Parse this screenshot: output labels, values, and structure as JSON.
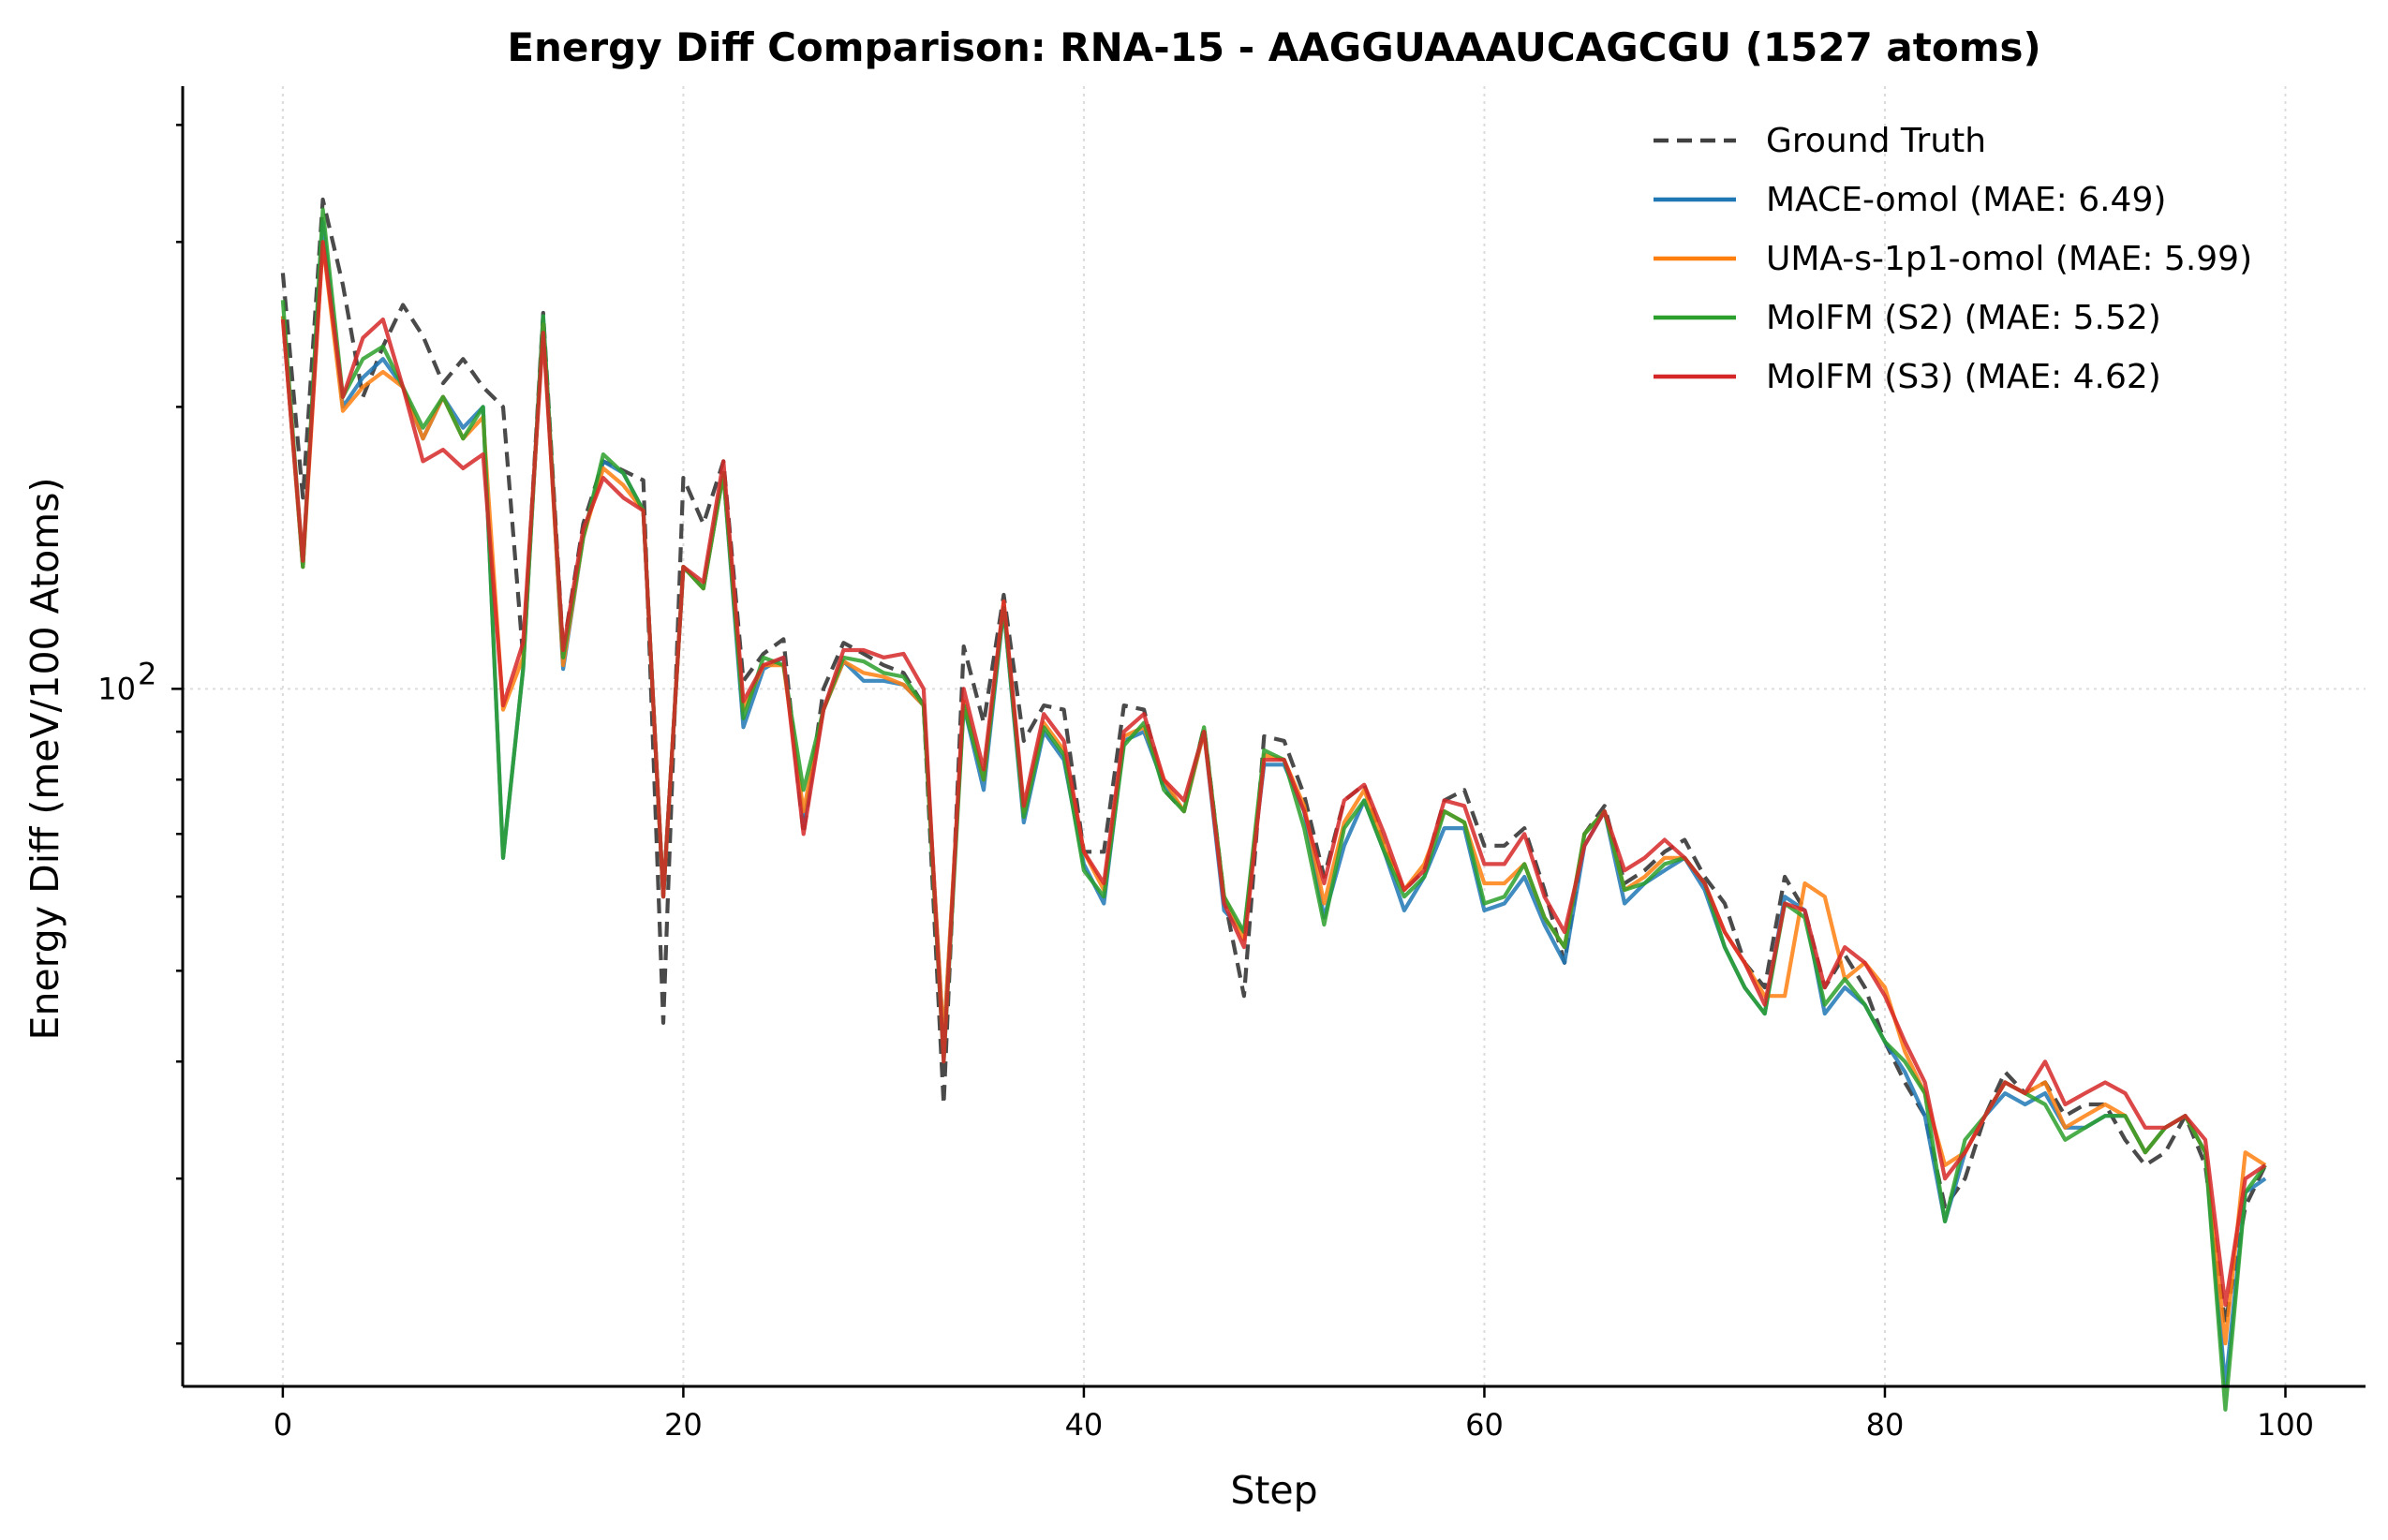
{
  "chart_data": {
    "type": "line",
    "title": "Energy Diff Comparison: RNA-15 - AAGGUAAAUCAGCGU (1527 atoms)",
    "xlabel": "Step",
    "ylabel": "Energy Diff (meV/100 Atoms)",
    "xlim": [
      -5,
      104
    ],
    "ylim": [
      18,
      440
    ],
    "yscale": "log",
    "xticks": [
      0,
      20,
      40,
      60,
      80,
      100
    ],
    "yticks_major": [
      {
        "value": 100,
        "label": "10",
        "exp": "2"
      }
    ],
    "yticks_minor": [
      20,
      30,
      40,
      50,
      60,
      70,
      80,
      90,
      200,
      300,
      400
    ],
    "grid": true,
    "legend_position": "top-right",
    "series": [
      {
        "name": "Ground Truth",
        "color": "#404040",
        "dashed": true,
        "values": [
          278,
          160,
          333,
          270,
          205,
          232,
          257,
          238,
          212,
          225,
          210,
          200,
          108,
          252,
          110,
          150,
          175,
          171,
          167,
          44,
          168,
          150,
          175,
          102,
          109,
          113,
          70,
          100,
          112,
          109,
          106,
          104,
          96,
          36,
          111,
          92,
          126,
          88,
          96,
          95,
          67,
          67,
          96,
          95,
          78,
          74,
          91,
          60,
          47,
          89,
          88,
          77,
          63,
          76,
          79,
          68,
          61,
          64,
          76,
          78,
          68,
          68,
          71,
          61,
          51,
          70,
          75,
          62,
          64,
          67,
          69,
          63,
          59,
          51,
          48,
          63,
          58,
          48,
          52,
          48,
          42,
          38,
          35,
          28,
          30,
          35,
          39,
          37,
          38,
          35,
          36,
          36,
          33,
          31,
          32,
          35,
          31,
          21,
          28,
          31
        ]
      },
      {
        "name": "MACE-omol (MAE: 6.49)",
        "color": "#1f77b4",
        "dashed": false,
        "values": [
          250,
          135,
          315,
          200,
          215,
          225,
          210,
          185,
          205,
          190,
          200,
          66,
          105,
          250,
          105,
          145,
          175,
          170,
          155,
          60,
          135,
          128,
          170,
          91,
          105,
          108,
          72,
          95,
          107,
          102,
          102,
          101,
          96,
          42,
          96,
          78,
          122,
          72,
          90,
          84,
          65,
          59,
          88,
          90,
          79,
          74,
          90,
          58,
          55,
          83,
          83,
          74,
          57,
          68,
          76,
          67,
          58,
          63,
          71,
          71,
          58,
          59,
          63,
          56,
          51,
          68,
          74,
          59,
          62,
          64,
          66,
          61,
          53,
          48,
          45,
          60,
          58,
          45,
          48,
          46,
          42,
          39,
          35,
          27,
          32,
          35,
          37,
          36,
          37,
          34,
          34,
          35,
          35,
          32,
          34,
          35,
          32,
          18,
          29,
          30
        ]
      },
      {
        "name": "UMA-s-1p1-omol (MAE: 5.99)",
        "color": "#ff7f0e",
        "dashed": false,
        "values": [
          250,
          135,
          300,
          198,
          210,
          218,
          210,
          185,
          205,
          185,
          195,
          95,
          108,
          245,
          106,
          145,
          172,
          165,
          155,
          60,
          135,
          128,
          170,
          95,
          106,
          106,
          74,
          95,
          107,
          104,
          103,
          101,
          96,
          42,
          97,
          80,
          124,
          74,
          92,
          86,
          67,
          61,
          89,
          91,
          80,
          74,
          90,
          60,
          54,
          85,
          84,
          75,
          59,
          72,
          78,
          68,
          61,
          65,
          74,
          72,
          62,
          62,
          65,
          57,
          53,
          70,
          74,
          61,
          63,
          66,
          66,
          62,
          55,
          51,
          47,
          47,
          62,
          60,
          49,
          51,
          48,
          41,
          37,
          31,
          32,
          35,
          38,
          37,
          38,
          34,
          35,
          36,
          35,
          32,
          34,
          35,
          32,
          20,
          32,
          31
        ]
      },
      {
        "name": "MolFM (S2) (MAE: 5.52)",
        "color": "#2ca02c",
        "dashed": false,
        "values": [
          260,
          135,
          325,
          205,
          225,
          232,
          210,
          190,
          205,
          185,
          200,
          66,
          105,
          250,
          108,
          145,
          178,
          170,
          155,
          60,
          135,
          128,
          170,
          93,
          108,
          106,
          78,
          95,
          108,
          107,
          104,
          103,
          96,
          40,
          96,
          80,
          122,
          73,
          91,
          85,
          64,
          60,
          87,
          92,
          78,
          74,
          91,
          60,
          55,
          86,
          84,
          71,
          56,
          71,
          76,
          67,
          60,
          63,
          74,
          72,
          59,
          60,
          65,
          57,
          53,
          70,
          74,
          61,
          62,
          65,
          66,
          62,
          53,
          48,
          45,
          59,
          57,
          46,
          49,
          46,
          42,
          40,
          37,
          27,
          33,
          35,
          38,
          37,
          36,
          33,
          34,
          35,
          35,
          32,
          34,
          35,
          32,
          17,
          29,
          31
        ]
      },
      {
        "name": "MolFM (S3) (MAE: 4.62)",
        "color": "#d62728",
        "dashed": false,
        "values": [
          248,
          137,
          300,
          205,
          237,
          248,
          210,
          175,
          180,
          172,
          178,
          96,
          112,
          240,
          110,
          148,
          168,
          160,
          155,
          60,
          135,
          130,
          175,
          97,
          106,
          108,
          70,
          95,
          110,
          110,
          108,
          109,
          100,
          40,
          100,
          82,
          124,
          75,
          94,
          88,
          67,
          62,
          90,
          94,
          80,
          76,
          90,
          59,
          53,
          84,
          84,
          74,
          62,
          76,
          79,
          70,
          61,
          64,
          76,
          75,
          65,
          65,
          70,
          60,
          55,
          68,
          74,
          64,
          66,
          69,
          66,
          62,
          55,
          51,
          46,
          59,
          58,
          48,
          53,
          51,
          47,
          42,
          38,
          30,
          32,
          35,
          38,
          37,
          40,
          36,
          37,
          38,
          37,
          34,
          34,
          35,
          33,
          22,
          30,
          31
        ]
      }
    ]
  }
}
